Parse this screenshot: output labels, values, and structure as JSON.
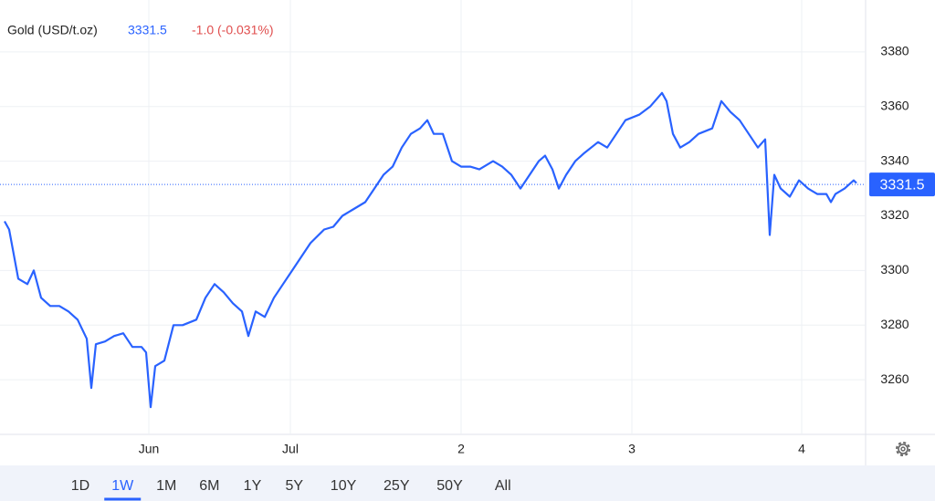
{
  "chart_data": {
    "type": "line",
    "title": "Gold (USD/t.oz)",
    "last_value": 3331.5,
    "change": "-1.0 (-0.031%)",
    "ranges": [
      "1D",
      "1W",
      "1M",
      "6M",
      "1Y",
      "5Y",
      "10Y",
      "25Y",
      "50Y",
      "All"
    ],
    "active_range": 1,
    "xlim": [
      0,
      948
    ],
    "xticks": [
      {
        "value": 163,
        "label": "Jun"
      },
      {
        "value": 318,
        "label": "Jul"
      },
      {
        "value": 505,
        "label": "2"
      },
      {
        "value": 692,
        "label": "3"
      },
      {
        "value": 878,
        "label": "4"
      }
    ],
    "ylim": [
      3240,
      3399
    ],
    "yticks": [
      3260,
      3280,
      3300,
      3320,
      3340,
      3360,
      3380
    ],
    "grid": true,
    "series": [
      {
        "name": "Gold",
        "color": "#2962ff",
        "x": [
          5,
          10,
          20,
          30,
          37,
          45,
          55,
          65,
          75,
          85,
          95,
          100,
          105,
          115,
          125,
          135,
          145,
          155,
          160,
          165,
          170,
          180,
          190,
          200,
          215,
          225,
          235,
          245,
          255,
          265,
          272,
          280,
          290,
          300,
          310,
          320,
          330,
          340,
          355,
          365,
          375,
          385,
          400,
          410,
          420,
          430,
          440,
          450,
          460,
          468,
          475,
          485,
          495,
          505,
          515,
          525,
          540,
          550,
          560,
          570,
          580,
          590,
          597,
          605,
          612,
          620,
          630,
          640,
          655,
          665,
          675,
          685,
          700,
          712,
          725,
          730,
          737,
          745,
          755,
          765,
          780,
          790,
          800,
          810,
          820,
          830,
          838,
          843,
          848,
          855,
          865,
          875,
          885,
          895,
          905,
          910,
          915,
          925,
          935,
          938
        ],
        "values": [
          3318,
          3315,
          3297,
          3295,
          3300,
          3290,
          3287,
          3287,
          3285,
          3282,
          3275,
          3257,
          3273,
          3274,
          3276,
          3277,
          3272,
          3272,
          3270,
          3250,
          3265,
          3267,
          3280,
          3280,
          3282,
          3290,
          3295,
          3292,
          3288,
          3285,
          3276,
          3285,
          3283,
          3290,
          3295,
          3300,
          3305,
          3310,
          3315,
          3316,
          3320,
          3322,
          3325,
          3330,
          3335,
          3338,
          3345,
          3350,
          3352,
          3355,
          3350,
          3350,
          3340,
          3338,
          3338,
          3337,
          3340,
          3338,
          3335,
          3330,
          3335,
          3340,
          3342,
          3337,
          3330,
          3335,
          3340,
          3343,
          3347,
          3345,
          3350,
          3355,
          3357,
          3360,
          3365,
          3362,
          3350,
          3345,
          3347,
          3350,
          3352,
          3362,
          3358,
          3355,
          3350,
          3345,
          3348,
          3313,
          3335,
          3330,
          3327,
          3333,
          3330,
          3328,
          3328,
          3325,
          3328,
          3330,
          3333,
          3332
        ]
      }
    ]
  }
}
